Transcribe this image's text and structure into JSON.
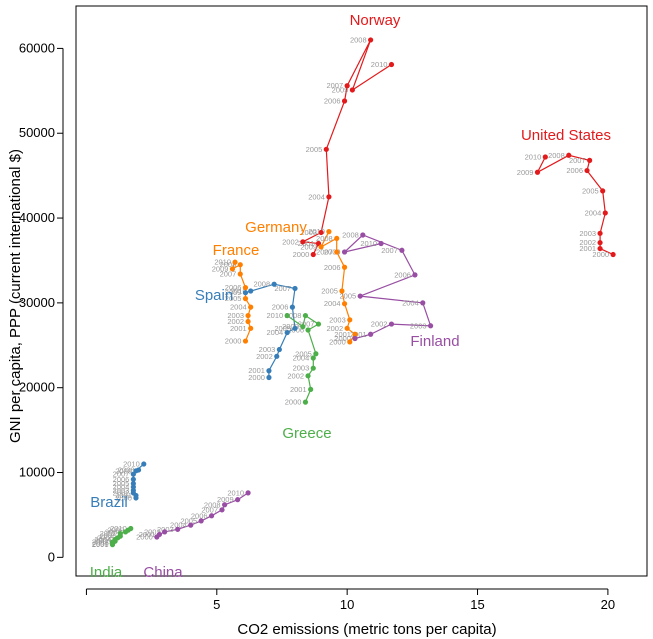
{
  "chart_data": {
    "type": "scatter",
    "xlabel": "CO2 emissions (metric tons per capita)",
    "ylabel": "GNI per capita, PPP (current international $)",
    "xlim": [
      -0.4,
      21.5
    ],
    "ylim": [
      -2200,
      65000
    ],
    "x_ticks": [
      5,
      10,
      15,
      20
    ],
    "y_ticks": [
      0,
      10000,
      20000,
      30000,
      40000,
      50000,
      60000
    ],
    "grid": false,
    "series": [
      {
        "name": "Norway",
        "color": "#e31a1c",
        "points": [
          {
            "year": "2000",
            "x": 8.7,
            "y": 35700
          },
          {
            "year": "2001",
            "x": 8.9,
            "y": 37000
          },
          {
            "year": "2002",
            "x": 8.3,
            "y": 37200
          },
          {
            "year": "2003",
            "x": 9.0,
            "y": 38300
          },
          {
            "year": "2004",
            "x": 9.3,
            "y": 42500
          },
          {
            "year": "2005",
            "x": 9.2,
            "y": 48100
          },
          {
            "year": "2006",
            "x": 9.9,
            "y": 53800
          },
          {
            "year": "2007",
            "x": 10.0,
            "y": 55600
          },
          {
            "year": "2008",
            "x": 10.9,
            "y": 61000
          },
          {
            "year": "2009",
            "x": 10.2,
            "y": 55100
          },
          {
            "year": "2010",
            "x": 11.7,
            "y": 58100
          }
        ]
      },
      {
        "name": "United States",
        "color": "#e31a1c",
        "points": [
          {
            "year": "2000",
            "x": 20.2,
            "y": 35700
          },
          {
            "year": "2001",
            "x": 19.7,
            "y": 36400
          },
          {
            "year": "2002",
            "x": 19.7,
            "y": 37100
          },
          {
            "year": "2003",
            "x": 19.7,
            "y": 38200
          },
          {
            "year": "2004",
            "x": 19.9,
            "y": 40600
          },
          {
            "year": "2005",
            "x": 19.8,
            "y": 43200
          },
          {
            "year": "2006",
            "x": 19.2,
            "y": 45600
          },
          {
            "year": "2007",
            "x": 19.3,
            "y": 46800
          },
          {
            "year": "2008",
            "x": 18.5,
            "y": 47400
          },
          {
            "year": "2009",
            "x": 17.3,
            "y": 45400
          },
          {
            "year": "2010",
            "x": 17.6,
            "y": 47200
          }
        ]
      },
      {
        "name": "Germany",
        "color": "#ff7f00",
        "points": [
          {
            "year": "2000",
            "x": 10.1,
            "y": 25400
          },
          {
            "year": "2001",
            "x": 10.3,
            "y": 26300
          },
          {
            "year": "2002",
            "x": 10.0,
            "y": 27000
          },
          {
            "year": "2003",
            "x": 10.1,
            "y": 28000
          },
          {
            "year": "2004",
            "x": 9.9,
            "y": 29900
          },
          {
            "year": "2005",
            "x": 9.8,
            "y": 31400
          },
          {
            "year": "2006",
            "x": 9.9,
            "y": 34200
          },
          {
            "year": "2007",
            "x": 9.6,
            "y": 36000
          },
          {
            "year": "2008",
            "x": 9.6,
            "y": 37600
          },
          {
            "year": "2009",
            "x": 9.0,
            "y": 36600
          },
          {
            "year": "2010",
            "x": 9.3,
            "y": 38400
          }
        ]
      },
      {
        "name": "France",
        "color": "#ff7f00",
        "points": [
          {
            "year": "2000",
            "x": 6.1,
            "y": 25500
          },
          {
            "year": "2001",
            "x": 6.3,
            "y": 27000
          },
          {
            "year": "2002",
            "x": 6.2,
            "y": 27800
          },
          {
            "year": "2003",
            "x": 6.2,
            "y": 28500
          },
          {
            "year": "2004",
            "x": 6.3,
            "y": 29500
          },
          {
            "year": "2005",
            "x": 6.1,
            "y": 30500
          },
          {
            "year": "2006",
            "x": 6.1,
            "y": 31800
          },
          {
            "year": "2007",
            "x": 5.9,
            "y": 33400
          },
          {
            "year": "2008",
            "x": 5.9,
            "y": 34500
          },
          {
            "year": "2009",
            "x": 5.6,
            "y": 34000
          },
          {
            "year": "2010",
            "x": 5.7,
            "y": 34800
          }
        ]
      },
      {
        "name": "Spain",
        "color": "#377eb8",
        "points": [
          {
            "year": "2000",
            "x": 7.0,
            "y": 21200
          },
          {
            "year": "2001",
            "x": 7.0,
            "y": 22000
          },
          {
            "year": "2002",
            "x": 7.3,
            "y": 23700
          },
          {
            "year": "2003",
            "x": 7.4,
            "y": 24500
          },
          {
            "year": "2004",
            "x": 7.7,
            "y": 26500
          },
          {
            "year": "2005",
            "x": 8.0,
            "y": 27000
          },
          {
            "year": "2006",
            "x": 7.9,
            "y": 29500
          },
          {
            "year": "2007",
            "x": 8.0,
            "y": 31700
          },
          {
            "year": "2008",
            "x": 7.2,
            "y": 32200
          },
          {
            "year": "2009",
            "x": 6.1,
            "y": 31200
          },
          {
            "year": "2010",
            "x": 6.3,
            "y": 31400
          }
        ]
      },
      {
        "name": "Greece",
        "color": "#4daf4a",
        "points": [
          {
            "year": "2000",
            "x": 8.4,
            "y": 18300
          },
          {
            "year": "2001",
            "x": 8.6,
            "y": 19800
          },
          {
            "year": "2002",
            "x": 8.5,
            "y": 21400
          },
          {
            "year": "2003",
            "x": 8.7,
            "y": 22300
          },
          {
            "year": "2004",
            "x": 8.7,
            "y": 23500
          },
          {
            "year": "2005",
            "x": 8.8,
            "y": 24000
          },
          {
            "year": "2006",
            "x": 8.5,
            "y": 26800
          },
          {
            "year": "2007",
            "x": 8.9,
            "y": 27500
          },
          {
            "year": "2008",
            "x": 8.4,
            "y": 28500
          },
          {
            "year": "2009",
            "x": 8.3,
            "y": 27200
          },
          {
            "year": "2010",
            "x": 7.7,
            "y": 28500
          }
        ]
      },
      {
        "name": "Finland",
        "color": "#984ea3",
        "points": [
          {
            "year": "2000",
            "x": 10.3,
            "y": 25800
          },
          {
            "year": "2001",
            "x": 10.9,
            "y": 26300
          },
          {
            "year": "2002",
            "x": 11.7,
            "y": 27500
          },
          {
            "year": "2003",
            "x": 13.2,
            "y": 27300
          },
          {
            "year": "2004",
            "x": 12.9,
            "y": 30000
          },
          {
            "year": "2005",
            "x": 10.5,
            "y": 30800
          },
          {
            "year": "2006",
            "x": 12.6,
            "y": 33300
          },
          {
            "year": "2007",
            "x": 12.1,
            "y": 36200
          },
          {
            "year": "2008",
            "x": 10.6,
            "y": 38000
          },
          {
            "year": "2009",
            "x": 9.9,
            "y": 36000
          },
          {
            "year": "2010",
            "x": 11.3,
            "y": 37000
          }
        ]
      },
      {
        "name": "Brazil",
        "color": "#377eb8",
        "points": [
          {
            "year": "2000",
            "x": 1.9,
            "y": 7000
          },
          {
            "year": "2001",
            "x": 1.9,
            "y": 7300
          },
          {
            "year": "2002",
            "x": 1.8,
            "y": 7600
          },
          {
            "year": "2003",
            "x": 1.8,
            "y": 7900
          },
          {
            "year": "2004",
            "x": 1.8,
            "y": 8300
          },
          {
            "year": "2005",
            "x": 1.8,
            "y": 8700
          },
          {
            "year": "2006",
            "x": 1.8,
            "y": 9200
          },
          {
            "year": "2007",
            "x": 1.8,
            "y": 9800
          },
          {
            "year": "2008",
            "x": 2.0,
            "y": 10300
          },
          {
            "year": "2009",
            "x": 1.9,
            "y": 10200
          },
          {
            "year": "2010",
            "x": 2.2,
            "y": 11000
          }
        ]
      },
      {
        "name": "India",
        "color": "#4daf4a",
        "points": [
          {
            "year": "2000",
            "x": 1.0,
            "y": 1500
          },
          {
            "year": "2001",
            "x": 1.0,
            "y": 1600
          },
          {
            "year": "2002",
            "x": 1.0,
            "y": 1800
          },
          {
            "year": "2003",
            "x": 1.1,
            "y": 1900
          },
          {
            "year": "2004",
            "x": 1.1,
            "y": 2100
          },
          {
            "year": "2005",
            "x": 1.2,
            "y": 2300
          },
          {
            "year": "2006",
            "x": 1.3,
            "y": 2500
          },
          {
            "year": "2007",
            "x": 1.3,
            "y": 2800
          },
          {
            "year": "2008",
            "x": 1.5,
            "y": 3000
          },
          {
            "year": "2009",
            "x": 1.6,
            "y": 3200
          },
          {
            "year": "2010",
            "x": 1.7,
            "y": 3400
          }
        ]
      },
      {
        "name": "China",
        "color": "#984ea3",
        "points": [
          {
            "year": "2000",
            "x": 2.7,
            "y": 2400
          },
          {
            "year": "2001",
            "x": 2.8,
            "y": 2700
          },
          {
            "year": "2002",
            "x": 3.0,
            "y": 3000
          },
          {
            "year": "2003",
            "x": 3.5,
            "y": 3300
          },
          {
            "year": "2004",
            "x": 4.0,
            "y": 3800
          },
          {
            "year": "2005",
            "x": 4.4,
            "y": 4300
          },
          {
            "year": "2006",
            "x": 4.8,
            "y": 4900
          },
          {
            "year": "2007",
            "x": 5.2,
            "y": 5600
          },
          {
            "year": "2008",
            "x": 5.3,
            "y": 6200
          },
          {
            "year": "2009",
            "x": 5.8,
            "y": 6800
          },
          {
            "year": "2010",
            "x": 6.2,
            "y": 7600
          }
        ]
      }
    ]
  }
}
